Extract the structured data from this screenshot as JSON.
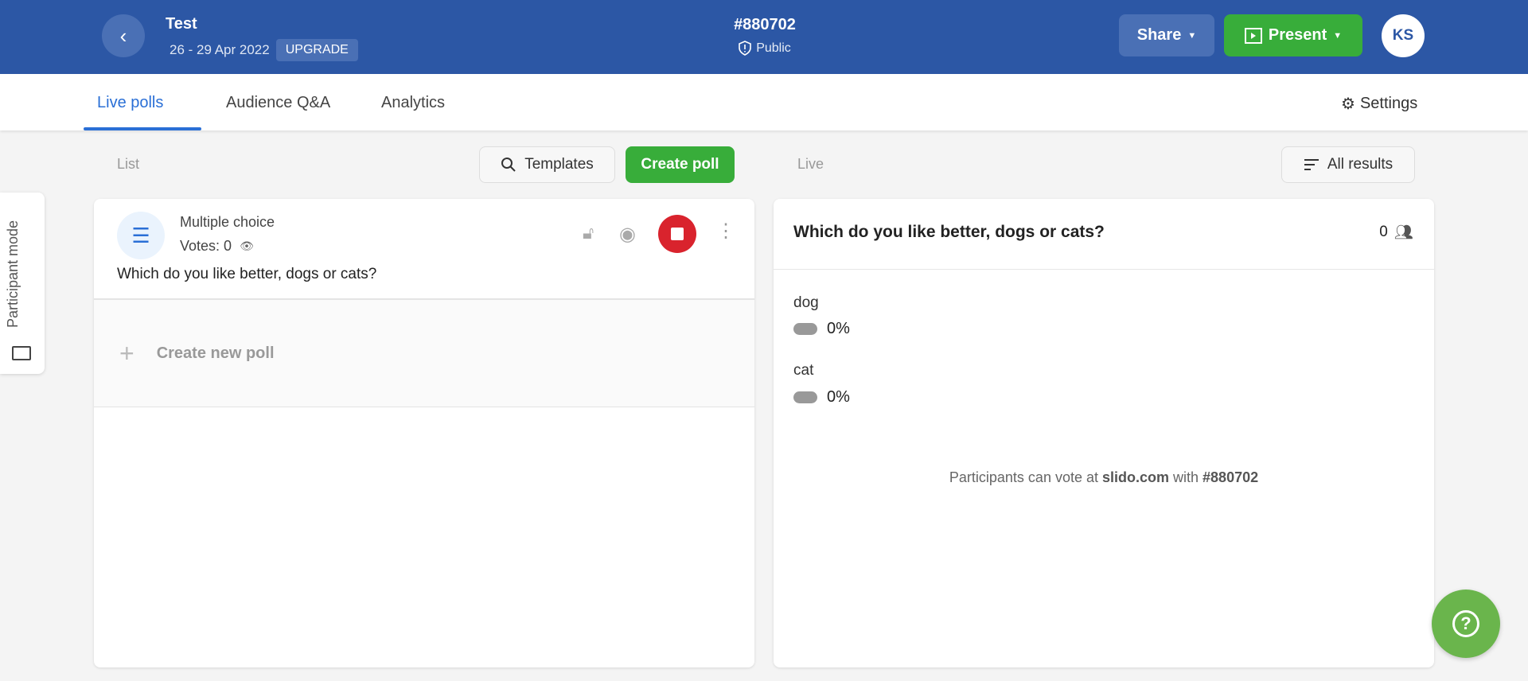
{
  "header": {
    "title": "Test",
    "dates": "26 - 29 Apr 2022",
    "upgrade": "UPGRADE",
    "event_code": "#880702",
    "visibility": "Public",
    "share": "Share",
    "present": "Present",
    "avatar": "KS",
    "brand_color": "#2c57a5"
  },
  "tabs": [
    {
      "label": "Live polls",
      "active": true
    },
    {
      "label": "Audience Q&A"
    },
    {
      "label": "Analytics"
    }
  ],
  "settings": "Settings",
  "list_panel": {
    "label": "List",
    "templates": "Templates",
    "create_poll": "Create poll",
    "poll": {
      "type": "Multiple choice",
      "votes": "Votes: 0",
      "question": "Which do you like better, dogs or cats?"
    },
    "create_new": "Create new poll"
  },
  "live_panel": {
    "label": "Live",
    "all_results": "All results",
    "question": "Which do you like better, dogs or cats?",
    "participants": "0",
    "options": [
      {
        "label": "dog",
        "percent": "0%"
      },
      {
        "label": "cat",
        "percent": "0%"
      }
    ],
    "footer_prefix": "Participants can vote at ",
    "footer_site": "slido.com",
    "footer_mid": " with ",
    "footer_code": "#880702"
  },
  "participant_mode": "Participant mode"
}
